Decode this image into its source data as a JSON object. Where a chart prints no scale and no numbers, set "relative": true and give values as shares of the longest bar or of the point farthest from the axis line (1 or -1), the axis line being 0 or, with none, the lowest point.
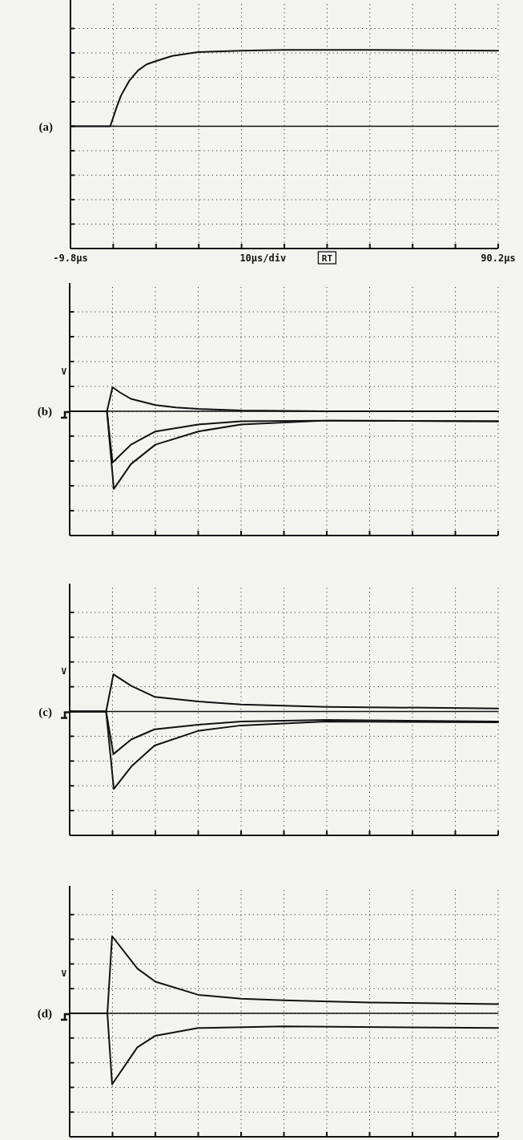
{
  "chart_data": [
    {
      "type": "line",
      "title": "(a)",
      "relative": true,
      "xlim": [
        -9.8,
        90.2
      ],
      "xticks": [
        {
          "value": -9.8,
          "label": "-9.8µs"
        },
        {
          "value": 0.2,
          "label": null
        },
        {
          "value": 10.2,
          "label": null
        },
        {
          "value": 20.2,
          "label": null
        },
        {
          "value": 30.2,
          "label": null
        },
        {
          "value": 40.2,
          "label": null
        },
        {
          "value": 50.2,
          "label": null
        },
        {
          "value": 60.2,
          "label": null
        },
        {
          "value": 70.2,
          "label": null
        },
        {
          "value": 80.2,
          "label": null
        },
        {
          "value": 90.2,
          "label": "90.2µs"
        }
      ],
      "tick_labels": "x",
      "grid": true,
      "line_style": "solid",
      "xlabel": "10µs/div",
      "annotations": [
        "RT"
      ],
      "series": [
        {
          "color": "#111111",
          "x": [
            -9.8,
            -0.5,
            1,
            2,
            3,
            4,
            6,
            8,
            10,
            14,
            20,
            30,
            40,
            60,
            90.2
          ],
          "values": [
            0,
            0,
            0.25,
            0.4,
            0.5,
            0.6,
            0.73,
            0.81,
            0.85,
            0.92,
            0.97,
            0.99,
            1,
            1,
            0.99
          ]
        },
        {
          "color": "#111111",
          "x": [
            -9.8,
            90.2
          ],
          "values": [
            0,
            0
          ]
        }
      ]
    },
    {
      "type": "line",
      "title": "(b)",
      "relative": true,
      "xlim": [
        -9.8,
        90.2
      ],
      "xticks": [
        {
          "value": 0.2,
          "label": null
        },
        {
          "value": 10.2,
          "label": null
        },
        {
          "value": 20.2,
          "label": null
        },
        {
          "value": 30.2,
          "label": null
        },
        {
          "value": 40.2,
          "label": null
        },
        {
          "value": 50.2,
          "label": null
        },
        {
          "value": 60.2,
          "label": null
        },
        {
          "value": 70.2,
          "label": null
        },
        {
          "value": 80.2,
          "label": null
        },
        {
          "value": 90.2,
          "label": null
        }
      ],
      "tick_labels": false,
      "grid": true,
      "line_style": "solid",
      "annotations": [
        "V"
      ],
      "series": [
        {
          "color": "#111111",
          "x": [
            -9.8,
            -1.1,
            0.2,
            2,
            4.5,
            10.2,
            15,
            20.2,
            30.2,
            50,
            90.2
          ],
          "values": [
            0,
            0,
            0.31,
            0.24,
            0.16,
            0.08,
            0.05,
            0.03,
            0.01,
            0,
            0
          ]
        },
        {
          "color": "#111111",
          "x": [
            -9.8,
            -1.1,
            0.2,
            4.5,
            10.2,
            20.2,
            30.2,
            50,
            90.2
          ],
          "values": [
            0,
            0,
            -0.66,
            -0.43,
            -0.26,
            -0.17,
            -0.13,
            -0.12,
            -0.13
          ]
        },
        {
          "color": "#111111",
          "x": [
            -9.8,
            -1.1,
            0.5,
            4.5,
            10.2,
            20.2,
            30.2,
            50,
            90.2
          ],
          "values": [
            0,
            0,
            -1,
            -0.68,
            -0.43,
            -0.26,
            -0.17,
            -0.12,
            -0.13
          ]
        },
        {
          "color": "#111111",
          "x": [
            -9.8,
            90.2
          ],
          "values": [
            0,
            0
          ]
        }
      ]
    },
    {
      "type": "line",
      "title": "(c)",
      "relative": true,
      "xlim": [
        -9.8,
        90.2
      ],
      "xticks": [
        {
          "value": 0.2,
          "label": null
        },
        {
          "value": 10.2,
          "label": null
        },
        {
          "value": 20.2,
          "label": null
        },
        {
          "value": 30.2,
          "label": null
        },
        {
          "value": 40.2,
          "label": null
        },
        {
          "value": 50.2,
          "label": null
        },
        {
          "value": 60.2,
          "label": null
        },
        {
          "value": 70.2,
          "label": null
        },
        {
          "value": 80.2,
          "label": null
        },
        {
          "value": 90.2,
          "label": null
        }
      ],
      "tick_labels": false,
      "grid": true,
      "line_style": "solid",
      "annotations": [
        "V"
      ],
      "series": [
        {
          "color": "#111111",
          "x": [
            -9.8,
            -1.3,
            0.4,
            4.6,
            10,
            20.2,
            30.2,
            50,
            90.2
          ],
          "values": [
            0,
            0,
            0.48,
            0.33,
            0.19,
            0.13,
            0.09,
            0.06,
            0.04
          ]
        },
        {
          "color": "#111111",
          "x": [
            -9.8,
            -1.3,
            0.4,
            4.6,
            10,
            20.2,
            30.2,
            50,
            90.2
          ],
          "values": [
            0,
            0,
            -0.55,
            -0.36,
            -0.23,
            -0.17,
            -0.13,
            -0.11,
            -0.13
          ]
        },
        {
          "color": "#111111",
          "x": [
            -9.8,
            -1.3,
            0.5,
            4.6,
            10,
            20.2,
            30.2,
            50,
            90.2
          ],
          "values": [
            0,
            0,
            -1,
            -0.71,
            -0.44,
            -0.25,
            -0.18,
            -0.13,
            -0.14
          ]
        },
        {
          "color": "#111111",
          "x": [
            -9.8,
            90.2
          ],
          "values": [
            0,
            0
          ]
        }
      ]
    },
    {
      "type": "line",
      "title": "(d)",
      "relative": true,
      "xlim": [
        -9.8,
        90.2
      ],
      "xticks": [
        {
          "value": 0.2,
          "label": null
        },
        {
          "value": 10.2,
          "label": null
        },
        {
          "value": 20.2,
          "label": null
        },
        {
          "value": 30.2,
          "label": null
        },
        {
          "value": 40.2,
          "label": null
        },
        {
          "value": 50.2,
          "label": null
        },
        {
          "value": 60.2,
          "label": null
        },
        {
          "value": 70.2,
          "label": null
        },
        {
          "value": 80.2,
          "label": null
        },
        {
          "value": 90.2,
          "label": null
        }
      ],
      "tick_labels": false,
      "grid": true,
      "line_style": "solid",
      "annotations": [
        "V"
      ],
      "series": [
        {
          "color": "#111111",
          "x": [
            -9.8,
            -1,
            0.1,
            6,
            10.2,
            20.2,
            30.2,
            40.2,
            60.2,
            90.2
          ],
          "values": [
            0,
            0,
            1,
            0.58,
            0.41,
            0.24,
            0.19,
            0.17,
            0.14,
            0.12
          ]
        },
        {
          "color": "#111111",
          "x": [
            -9.8,
            -1,
            0.1,
            6,
            10.2,
            20.2,
            40.2,
            90.2
          ],
          "values": [
            0,
            0,
            -0.92,
            -0.44,
            -0.29,
            -0.19,
            -0.17,
            -0.19
          ]
        },
        {
          "color": "#111111",
          "x": [
            -9.8,
            90.2
          ],
          "values": [
            0,
            0
          ]
        }
      ]
    }
  ]
}
